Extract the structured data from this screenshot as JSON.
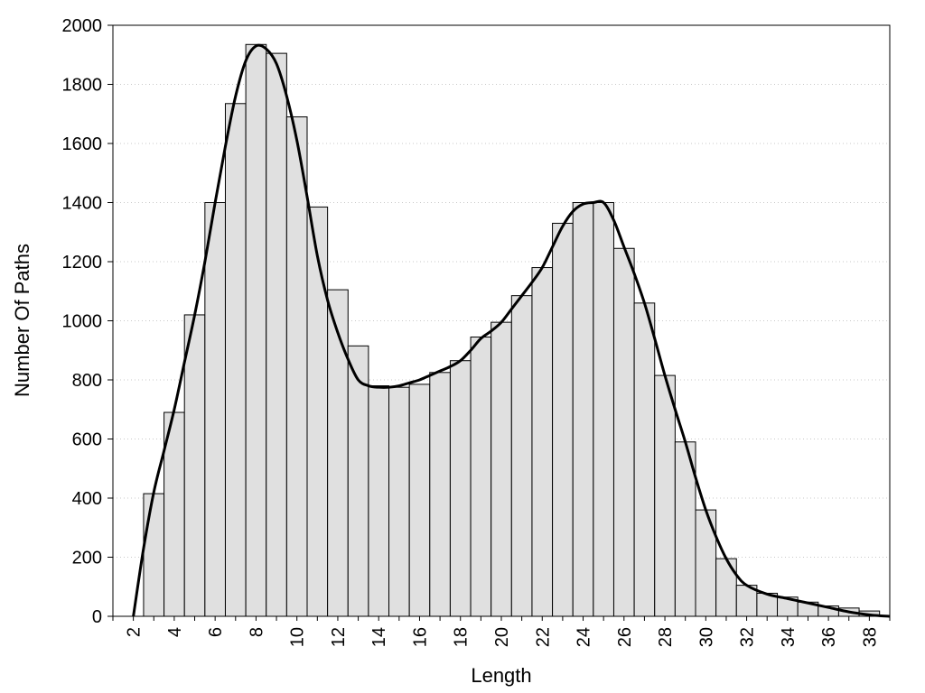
{
  "chart_data": {
    "type": "bar",
    "title": "",
    "xlabel": "Length",
    "ylabel": "Number Of Paths",
    "xlim": [
      1,
      39
    ],
    "ylim": [
      0,
      2000
    ],
    "x_ticks": [
      2,
      4,
      6,
      8,
      10,
      12,
      14,
      16,
      18,
      20,
      22,
      24,
      26,
      28,
      30,
      32,
      34,
      36,
      38
    ],
    "y_ticks": [
      0,
      200,
      400,
      600,
      800,
      1000,
      1200,
      1400,
      1600,
      1800,
      2000
    ],
    "grid": {
      "horizontal": true,
      "style": "dotted"
    },
    "bar_color": "#e0e0e0",
    "bars": {
      "x": [
        3,
        4,
        5,
        6,
        7,
        8,
        9,
        10,
        11,
        12,
        13,
        14,
        15,
        16,
        17,
        18,
        19,
        20,
        21,
        22,
        23,
        24,
        25,
        26,
        27,
        28,
        29,
        30,
        31,
        32,
        33,
        34,
        35,
        36,
        37,
        38
      ],
      "values": [
        415,
        690,
        1020,
        1400,
        1735,
        1935,
        1905,
        1690,
        1385,
        1105,
        915,
        780,
        775,
        785,
        825,
        865,
        945,
        995,
        1085,
        1180,
        1330,
        1400,
        1400,
        1245,
        1060,
        815,
        590,
        360,
        195,
        105,
        78,
        65,
        48,
        35,
        28,
        18
      ]
    },
    "curve": {
      "type": "line",
      "x": [
        2.0,
        2.5,
        3.0,
        3.5,
        4.0,
        4.5,
        5.0,
        5.5,
        6.0,
        6.5,
        7.0,
        7.5,
        8.0,
        8.5,
        9.0,
        9.5,
        10.0,
        10.5,
        11.0,
        11.5,
        12.0,
        12.5,
        13.0,
        13.5,
        14.0,
        14.5,
        15.0,
        15.5,
        16.0,
        16.5,
        17.0,
        17.5,
        18.0,
        18.5,
        19.0,
        19.5,
        20.0,
        20.5,
        21.0,
        21.5,
        22.0,
        22.5,
        23.0,
        23.5,
        24.0,
        24.5,
        25.0,
        25.5,
        26.0,
        26.5,
        27.0,
        27.5,
        28.0,
        28.5,
        29.0,
        29.5,
        30.0,
        30.5,
        31.0,
        31.5,
        32.0,
        33.0,
        34.0,
        35.0,
        36.0,
        37.0,
        38.0,
        38.5,
        39.0
      ],
      "values": [
        0,
        230,
        420,
        560,
        700,
        860,
        1020,
        1200,
        1400,
        1590,
        1760,
        1880,
        1930,
        1920,
        1870,
        1760,
        1610,
        1420,
        1220,
        1070,
        960,
        870,
        800,
        780,
        775,
        775,
        780,
        790,
        800,
        815,
        830,
        845,
        865,
        900,
        940,
        965,
        995,
        1040,
        1085,
        1130,
        1180,
        1250,
        1320,
        1370,
        1395,
        1400,
        1400,
        1340,
        1250,
        1160,
        1060,
        940,
        815,
        700,
        590,
        470,
        360,
        270,
        195,
        140,
        105,
        75,
        60,
        45,
        30,
        15,
        5,
        2,
        0
      ]
    }
  }
}
